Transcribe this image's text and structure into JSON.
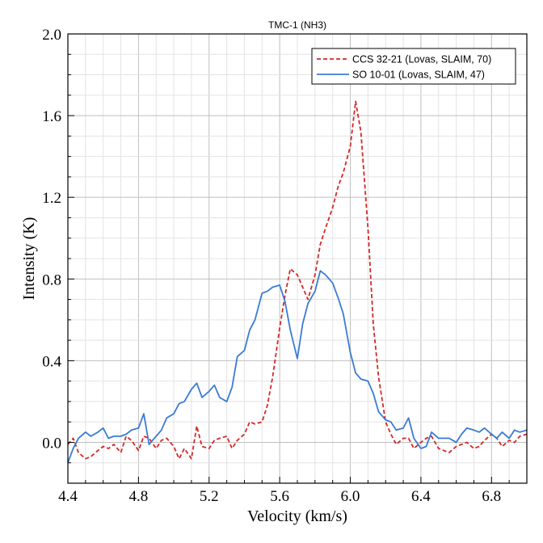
{
  "chart_data": {
    "type": "line",
    "title": "TMC-1 (NH3)",
    "xlabel": "Velocity (km/s)",
    "ylabel": "Intensity (K)",
    "xlim": [
      4.4,
      7.0
    ],
    "ylim": [
      -0.2,
      2.0
    ],
    "x_ticks": [
      4.4,
      4.8,
      5.2,
      5.6,
      6.0,
      6.4,
      6.8
    ],
    "x_tick_labels": [
      "4.4",
      "4.8",
      "5.2",
      "5.6",
      "6.0",
      "6.4",
      "6.8"
    ],
    "y_ticks": [
      0.0,
      0.4,
      0.8,
      1.2,
      1.6,
      2.0
    ],
    "y_tick_labels": [
      "0.0",
      "0.4",
      "0.8",
      "1.2",
      "1.6",
      "2.0"
    ],
    "x_minor_step": 0.1,
    "y_minor_step": 0.1,
    "grid": true,
    "legend_position": "top-right",
    "series": [
      {
        "name": "CCS 32-21 (Lovas, SLAIM, 70)",
        "color": "#d62728",
        "dash": "dashed",
        "x": [
          4.4,
          4.43,
          4.46,
          4.5,
          4.53,
          4.57,
          4.6,
          4.63,
          4.66,
          4.7,
          4.73,
          4.76,
          4.8,
          4.83,
          4.86,
          4.9,
          4.93,
          4.96,
          5.0,
          5.03,
          5.06,
          5.1,
          5.13,
          5.16,
          5.2,
          5.23,
          5.26,
          5.3,
          5.33,
          5.36,
          5.4,
          5.43,
          5.46,
          5.5,
          5.53,
          5.56,
          5.6,
          5.63,
          5.66,
          5.7,
          5.73,
          5.76,
          5.8,
          5.83,
          5.86,
          5.9,
          5.93,
          5.96,
          6.0,
          6.03,
          6.06,
          6.1,
          6.13,
          6.16,
          6.2,
          6.23,
          6.26,
          6.3,
          6.33,
          6.36,
          6.4,
          6.43,
          6.46,
          6.5,
          6.53,
          6.56,
          6.6,
          6.63,
          6.66,
          6.7,
          6.73,
          6.76,
          6.8,
          6.83,
          6.86,
          6.9,
          6.93,
          6.96,
          7.0
        ],
        "values": [
          -0.01,
          0.02,
          -0.05,
          -0.08,
          -0.07,
          -0.04,
          -0.02,
          -0.03,
          -0.01,
          -0.05,
          0.03,
          0.01,
          -0.04,
          0.03,
          0.02,
          -0.03,
          0.01,
          0.02,
          -0.02,
          -0.08,
          -0.03,
          -0.08,
          0.08,
          -0.02,
          -0.03,
          0.01,
          0.02,
          0.03,
          -0.03,
          0.01,
          0.04,
          0.1,
          0.09,
          0.1,
          0.18,
          0.32,
          0.56,
          0.72,
          0.85,
          0.82,
          0.76,
          0.7,
          0.82,
          0.97,
          1.05,
          1.15,
          1.25,
          1.32,
          1.45,
          1.67,
          1.52,
          1.05,
          0.58,
          0.32,
          0.1,
          0.04,
          -0.01,
          0.02,
          0.02,
          -0.03,
          0.0,
          0.02,
          0.03,
          -0.03,
          -0.04,
          -0.05,
          -0.02,
          -0.01,
          0.0,
          -0.03,
          -0.02,
          0.01,
          0.04,
          0.02,
          -0.02,
          0.01,
          0.0,
          0.03,
          0.04
        ]
      },
      {
        "name": "SO 10-01 (Lovas, SLAIM, 47)",
        "color": "#3a7bd5",
        "dash": "solid",
        "x": [
          4.4,
          4.43,
          4.46,
          4.5,
          4.53,
          4.57,
          4.6,
          4.63,
          4.66,
          4.7,
          4.73,
          4.76,
          4.8,
          4.83,
          4.86,
          4.9,
          4.93,
          4.96,
          5.0,
          5.03,
          5.06,
          5.1,
          5.13,
          5.16,
          5.2,
          5.23,
          5.26,
          5.3,
          5.33,
          5.36,
          5.4,
          5.43,
          5.46,
          5.5,
          5.53,
          5.56,
          5.6,
          5.63,
          5.66,
          5.7,
          5.73,
          5.76,
          5.8,
          5.83,
          5.86,
          5.9,
          5.93,
          5.96,
          6.0,
          6.03,
          6.06,
          6.1,
          6.13,
          6.16,
          6.2,
          6.23,
          6.26,
          6.3,
          6.33,
          6.36,
          6.4,
          6.43,
          6.46,
          6.5,
          6.53,
          6.56,
          6.6,
          6.63,
          6.66,
          6.7,
          6.73,
          6.76,
          6.8,
          6.83,
          6.86,
          6.9,
          6.93,
          6.96,
          7.0
        ],
        "values": [
          -0.1,
          -0.03,
          0.02,
          0.05,
          0.03,
          0.05,
          0.07,
          0.02,
          0.03,
          0.03,
          0.04,
          0.06,
          0.07,
          0.14,
          -0.01,
          0.03,
          0.06,
          0.12,
          0.14,
          0.19,
          0.2,
          0.26,
          0.29,
          0.22,
          0.25,
          0.28,
          0.22,
          0.2,
          0.27,
          0.42,
          0.45,
          0.55,
          0.6,
          0.73,
          0.74,
          0.76,
          0.77,
          0.69,
          0.55,
          0.41,
          0.58,
          0.68,
          0.74,
          0.84,
          0.82,
          0.78,
          0.71,
          0.63,
          0.44,
          0.34,
          0.31,
          0.3,
          0.24,
          0.15,
          0.11,
          0.1,
          0.06,
          0.07,
          0.12,
          0.02,
          -0.03,
          -0.02,
          0.05,
          0.02,
          0.02,
          0.02,
          0.0,
          0.04,
          0.07,
          0.06,
          0.05,
          0.07,
          0.04,
          0.02,
          0.05,
          0.02,
          0.06,
          0.05,
          0.06
        ]
      }
    ]
  }
}
